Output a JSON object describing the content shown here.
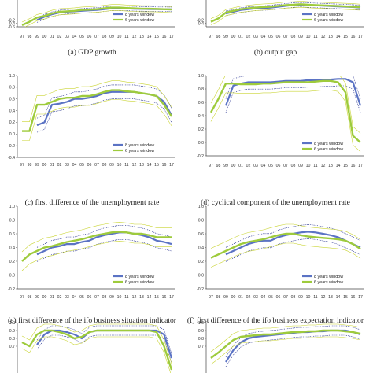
{
  "colors": {
    "series_8y": "#5b73c4",
    "series_6y": "#9ecb3c",
    "band_8y": "#1e2a8c",
    "band_6y": "#c9d433",
    "axis": "#444444"
  },
  "legend": {
    "label_8y": "8 years window",
    "label_6y": "6 years window"
  },
  "chart_data": [
    {
      "type": "line",
      "title": "(a) GDP growth",
      "ylim": [
        -0.6,
        1.0
      ],
      "yticks": [
        "-0.2",
        "-0.4",
        "-0.6"
      ],
      "x": [
        "97",
        "98",
        "99",
        "00",
        "01",
        "02",
        "03",
        "04",
        "05",
        "06",
        "07",
        "08",
        "09",
        "10",
        "11",
        "12",
        "13",
        "14",
        "15",
        "16",
        "17"
      ],
      "legend_position": "bottom-right",
      "cropped_top": true,
      "series": [
        {
          "name": "8 years window",
          "values": [
            null,
            null,
            -0.2,
            0.0,
            0.15,
            0.25,
            0.3,
            0.32,
            0.35,
            0.38,
            0.4,
            0.45,
            0.5,
            0.5,
            0.5,
            0.48,
            0.47,
            0.46,
            0.45,
            0.45,
            0.44
          ]
        },
        {
          "name": "6 years window",
          "values": [
            -0.5,
            -0.3,
            -0.05,
            0.05,
            0.2,
            0.3,
            0.32,
            0.35,
            0.4,
            0.42,
            0.45,
            0.5,
            0.55,
            0.55,
            0.52,
            0.5,
            0.48,
            0.48,
            0.47,
            0.45,
            0.43
          ]
        }
      ]
    },
    {
      "type": "line",
      "title": "(b) output gap",
      "ylim": [
        -0.6,
        1.0
      ],
      "yticks": [
        "-0.2",
        "-0.4"
      ],
      "x": [
        "97",
        "98",
        "99",
        "00",
        "01",
        "02",
        "03",
        "04",
        "05",
        "06",
        "07",
        "08",
        "09",
        "10",
        "11",
        "12",
        "13",
        "14",
        "15",
        "16",
        "17"
      ],
      "legend_position": "bottom-right",
      "cropped_top": true,
      "series": [
        {
          "name": "8 years window",
          "values": [
            null,
            null,
            0.2,
            0.3,
            0.4,
            0.45,
            0.5,
            0.52,
            0.55,
            0.6,
            0.65,
            0.7,
            0.72,
            0.7,
            0.68,
            0.66,
            0.64,
            0.62,
            0.6,
            0.58,
            0.55
          ]
        },
        {
          "name": "6 years window",
          "values": [
            -0.3,
            -0.1,
            0.25,
            0.35,
            0.45,
            0.5,
            0.55,
            0.58,
            0.6,
            0.65,
            0.7,
            0.72,
            0.75,
            0.72,
            0.7,
            0.68,
            0.66,
            0.64,
            0.62,
            0.6,
            0.57
          ]
        }
      ]
    },
    {
      "type": "line",
      "title": "(c) first difference of the unemployment rate",
      "ylim": [
        -0.4,
        1.0
      ],
      "yticks": [
        "1.0",
        "0.8",
        "0.6",
        "0.4",
        "0.2",
        "0.0",
        "-0.2",
        "-0.4"
      ],
      "x": [
        "97",
        "98",
        "99",
        "00",
        "01",
        "02",
        "03",
        "04",
        "05",
        "06",
        "07",
        "08",
        "09",
        "10",
        "11",
        "12",
        "13",
        "14",
        "15",
        "16",
        "17"
      ],
      "legend_position": "bottom-right",
      "series": [
        {
          "name": "8 years window",
          "values": [
            null,
            null,
            0.15,
            0.2,
            0.5,
            0.52,
            0.55,
            0.6,
            0.6,
            0.62,
            0.65,
            0.7,
            0.72,
            0.72,
            0.72,
            0.72,
            0.7,
            0.68,
            0.65,
            0.55,
            0.32
          ]
        },
        {
          "name": "6 years window",
          "values": [
            0.05,
            0.05,
            0.5,
            0.5,
            0.55,
            0.6,
            0.62,
            0.62,
            0.65,
            0.65,
            0.68,
            0.72,
            0.75,
            0.75,
            0.73,
            0.72,
            0.7,
            0.68,
            0.65,
            0.5,
            0.3
          ]
        }
      ]
    },
    {
      "type": "line",
      "title": "(d) cyclical component of the unemployment rate",
      "ylim": [
        -0.2,
        1.0
      ],
      "yticks": [
        "1.0",
        "0.8",
        "0.6",
        "0.4",
        "0.2",
        "0.0",
        "-0.2"
      ],
      "x": [
        "97",
        "98",
        "99",
        "00",
        "01",
        "02",
        "03",
        "04",
        "05",
        "06",
        "07",
        "08",
        "09",
        "10",
        "11",
        "12",
        "13",
        "14",
        "15",
        "16",
        "17"
      ],
      "legend_position": "bottom-right",
      "series": [
        {
          "name": "8 years window",
          "values": [
            null,
            null,
            0.55,
            0.85,
            0.88,
            0.9,
            0.9,
            0.9,
            0.9,
            0.91,
            0.92,
            0.92,
            0.92,
            0.93,
            0.93,
            0.94,
            0.94,
            0.95,
            0.95,
            0.9,
            0.55
          ]
        },
        {
          "name": "6 years window",
          "values": [
            0.45,
            0.65,
            0.88,
            0.88,
            0.87,
            0.87,
            0.87,
            0.88,
            0.88,
            0.89,
            0.9,
            0.9,
            0.9,
            0.9,
            0.91,
            0.92,
            0.92,
            0.9,
            0.75,
            0.1,
            0.0
          ]
        }
      ]
    },
    {
      "type": "line",
      "title": "(e) first difference of the ifo business situation indicator",
      "ylim": [
        -0.2,
        1.0
      ],
      "yticks": [
        "1.0",
        "0.8",
        "0.6",
        "0.4",
        "0.2",
        "0.0",
        "-0.2"
      ],
      "x": [
        "97",
        "98",
        "99",
        "00",
        "01",
        "02",
        "03",
        "04",
        "05",
        "06",
        "07",
        "08",
        "09",
        "10",
        "11",
        "12",
        "13",
        "14",
        "15",
        "16",
        "17"
      ],
      "legend_position": "bottom-right",
      "series": [
        {
          "name": "8 years window",
          "values": [
            null,
            null,
            0.3,
            0.35,
            0.4,
            0.42,
            0.45,
            0.45,
            0.48,
            0.5,
            0.55,
            0.58,
            0.6,
            0.62,
            0.62,
            0.6,
            0.58,
            0.55,
            0.5,
            0.48,
            0.45
          ]
        },
        {
          "name": "6 years window",
          "values": [
            0.2,
            0.3,
            0.35,
            0.4,
            0.42,
            0.45,
            0.48,
            0.5,
            0.52,
            0.55,
            0.58,
            0.6,
            0.62,
            0.63,
            0.62,
            0.6,
            0.6,
            0.58,
            0.55,
            0.55,
            0.55
          ]
        }
      ]
    },
    {
      "type": "line",
      "title": "(f) first difference of the ifo business expectation indicator",
      "ylim": [
        -0.2,
        1.0
      ],
      "yticks": [
        "1.0",
        "0.8",
        "0.6",
        "0.4",
        "0.2",
        "0.0",
        "-0.2"
      ],
      "x": [
        "97",
        "98",
        "99",
        "00",
        "01",
        "02",
        "03",
        "04",
        "05",
        "06",
        "07",
        "08",
        "09",
        "10",
        "11",
        "12",
        "13",
        "14",
        "15",
        "16",
        "17"
      ],
      "legend_position": "bottom-right",
      "series": [
        {
          "name": "8 years window",
          "values": [
            null,
            null,
            0.3,
            0.35,
            0.4,
            0.45,
            0.48,
            0.5,
            0.5,
            0.55,
            0.58,
            0.6,
            0.62,
            0.63,
            0.62,
            0.6,
            0.58,
            0.55,
            0.5,
            0.45,
            0.4
          ]
        },
        {
          "name": "6 years window",
          "values": [
            0.25,
            0.3,
            0.35,
            0.4,
            0.45,
            0.48,
            0.5,
            0.52,
            0.55,
            0.58,
            0.6,
            0.6,
            0.58,
            0.56,
            0.55,
            0.54,
            0.53,
            0.52,
            0.5,
            0.45,
            0.38
          ]
        }
      ]
    },
    {
      "type": "line",
      "title": "",
      "ylim": [
        0.3,
        1.0
      ],
      "yticks": [
        "1.0",
        "0.9",
        "0.8",
        "0.7"
      ],
      "x": [
        "97",
        "98",
        "99",
        "00",
        "01",
        "02",
        "03",
        "04",
        "05",
        "06",
        "07",
        "08",
        "09",
        "10",
        "11",
        "12",
        "13",
        "14",
        "15",
        "16",
        "17"
      ],
      "cropped_bottom": true,
      "series": [
        {
          "name": "8 years window",
          "values": [
            null,
            null,
            0.72,
            0.85,
            0.9,
            0.9,
            0.88,
            0.85,
            0.8,
            0.88,
            0.9,
            0.9,
            0.9,
            0.9,
            0.9,
            0.9,
            0.9,
            0.9,
            0.9,
            0.85,
            0.55
          ]
        },
        {
          "name": "6 years window",
          "values": [
            0.75,
            0.7,
            0.85,
            0.9,
            0.9,
            0.88,
            0.85,
            0.8,
            0.82,
            0.88,
            0.9,
            0.9,
            0.9,
            0.9,
            0.9,
            0.9,
            0.9,
            0.9,
            0.88,
            0.7,
            0.4
          ]
        }
      ]
    },
    {
      "type": "line",
      "title": "",
      "ylim": [
        0.3,
        1.0
      ],
      "yticks": [
        "1.0",
        "0.9",
        "0.8",
        "0.7"
      ],
      "x": [
        "97",
        "98",
        "99",
        "00",
        "01",
        "02",
        "03",
        "04",
        "05",
        "06",
        "07",
        "08",
        "09",
        "10",
        "11",
        "12",
        "13",
        "14",
        "15",
        "16",
        "17"
      ],
      "cropped_bottom": true,
      "series": [
        {
          "name": "8 years window",
          "values": [
            null,
            null,
            0.5,
            0.65,
            0.75,
            0.8,
            0.82,
            0.83,
            0.84,
            0.85,
            0.86,
            0.87,
            0.88,
            0.88,
            0.89,
            0.89,
            0.9,
            0.9,
            0.9,
            0.88,
            0.85
          ]
        },
        {
          "name": "6 years window",
          "values": [
            0.55,
            0.62,
            0.7,
            0.78,
            0.82,
            0.83,
            0.84,
            0.85,
            0.85,
            0.86,
            0.87,
            0.88,
            0.88,
            0.89,
            0.89,
            0.9,
            0.9,
            0.9,
            0.89,
            0.88,
            0.86
          ]
        }
      ]
    }
  ]
}
